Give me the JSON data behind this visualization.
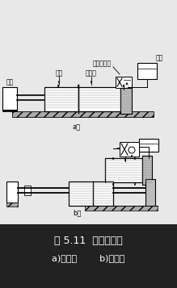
{
  "title_line1": "图 5.11  气液阻尼缸",
  "title_line2": "a)串联式        b)并联式",
  "label_a": "a）",
  "label_b": "b）",
  "label_fuze": "负载",
  "label_qigang": "气缸",
  "label_yeyagang": "液压缸",
  "label_danxiang": "单向节流阀",
  "label_youbei": "油杯",
  "bg_color": "#e8e8e8",
  "white": "#ffffff",
  "black": "#000000",
  "gray_light": "#c8c8c8",
  "caption_bg": "#222222"
}
